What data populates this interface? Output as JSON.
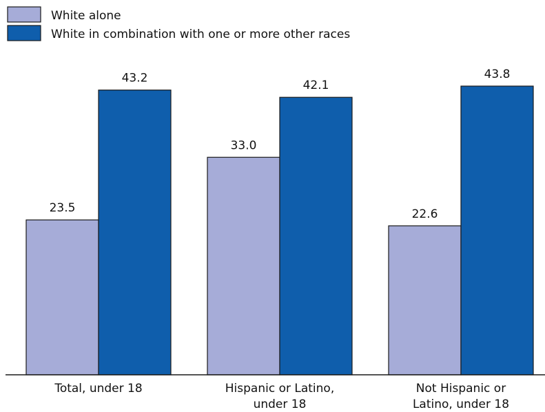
{
  "chart_data": {
    "type": "bar",
    "categories": [
      [
        "Total, under 18"
      ],
      [
        "Hispanic or Latino,",
        "under 18"
      ],
      [
        "Not Hispanic or",
        "Latino, under 18"
      ]
    ],
    "series": [
      {
        "name": "White alone",
        "values": [
          23.5,
          33.0,
          22.6
        ],
        "value_labels": [
          "23.5",
          "33.0",
          "22.6"
        ],
        "color": "#a6acd8"
      },
      {
        "name": "White in combination with one or more other races",
        "values": [
          43.2,
          42.1,
          43.8
        ],
        "value_labels": [
          "43.2",
          "42.1",
          "43.8"
        ],
        "color": "#0f5eac"
      }
    ],
    "ylim": [
      0,
      48.5
    ],
    "legend_position": "top-left",
    "grid": false
  }
}
